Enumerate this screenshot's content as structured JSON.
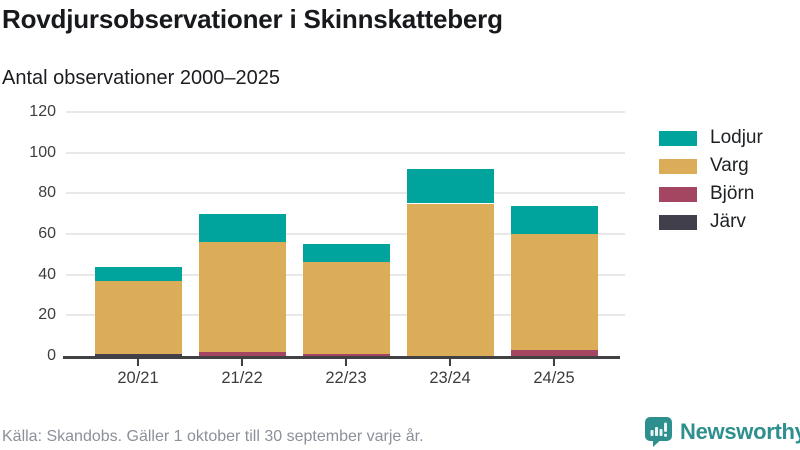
{
  "header": {
    "title": "Rovdjursobservationer i Skinnskatteberg",
    "subtitle": "Antal observationer 2000–2025"
  },
  "chart_data": {
    "type": "bar",
    "stacked": true,
    "title": "Rovdjursobservationer i Skinnskatteberg",
    "subtitle": "Antal observationer 2000–2025",
    "categories": [
      "20/21",
      "21/22",
      "22/23",
      "23/24",
      "24/25"
    ],
    "series": [
      {
        "name": "Järv",
        "color": "#413f4c",
        "values": [
          1,
          0,
          0,
          0,
          0
        ]
      },
      {
        "name": "Björn",
        "color": "#a44562",
        "values": [
          0,
          2,
          1,
          0,
          3
        ]
      },
      {
        "name": "Varg",
        "color": "#dbad58",
        "values": [
          36,
          54,
          45,
          75,
          57
        ]
      },
      {
        "name": "Lodjur",
        "color": "#00a49c",
        "values": [
          7,
          14,
          9,
          17,
          14
        ]
      }
    ],
    "legend_order": [
      "Lodjur",
      "Varg",
      "Björn",
      "Järv"
    ],
    "legend_position": "right",
    "ylim": [
      0,
      120
    ],
    "yticks": [
      0,
      20,
      40,
      60,
      80,
      100,
      120
    ],
    "grid": true
  },
  "footer": {
    "source": "Källa: Skandobs. Gäller 1 oktober till 30 september varje år.",
    "brand": "Newsworthy"
  },
  "colors": {
    "lodjur": "#00a49c",
    "varg": "#dbad58",
    "bjorn": "#a44562",
    "jarv": "#413f4c",
    "axis": "#414144",
    "grid": "#e8e8e8",
    "brand_teal": "#2e908e"
  }
}
